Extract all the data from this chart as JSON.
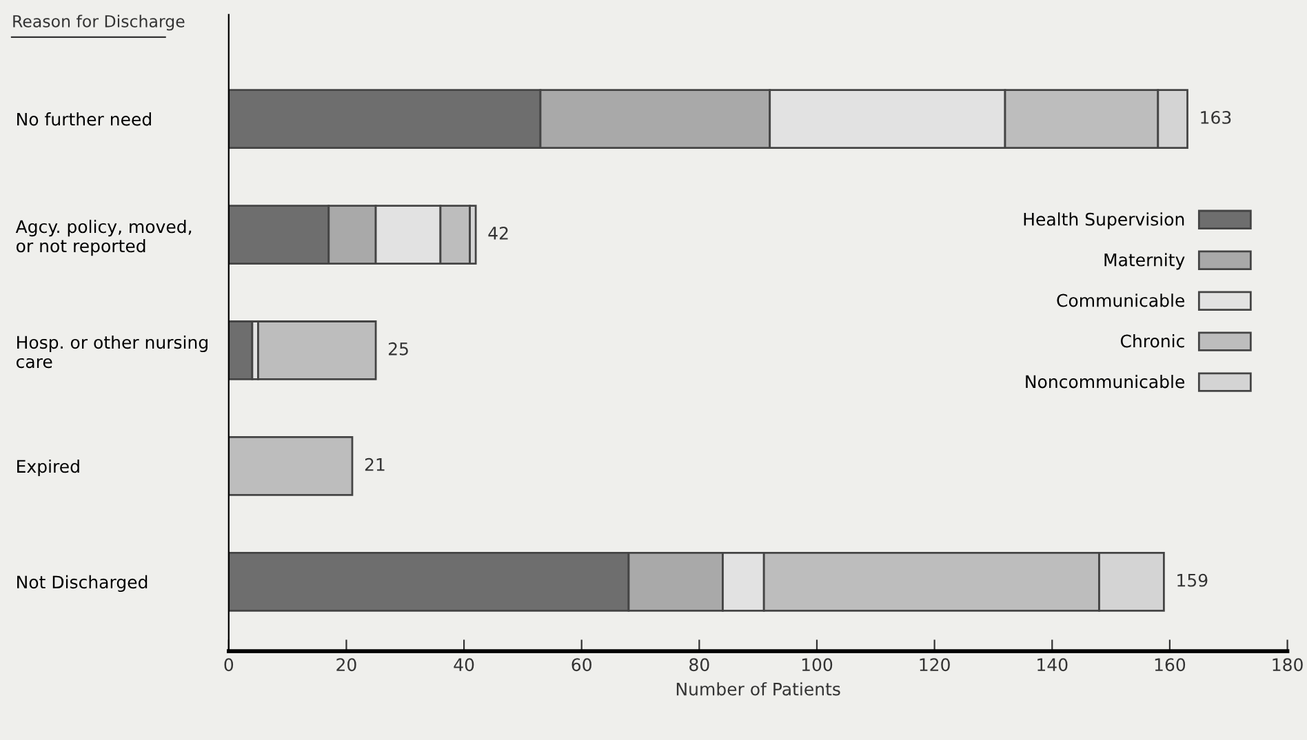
{
  "chart_data": {
    "type": "bar",
    "orientation": "horizontal",
    "stacked": true,
    "ylabel": "Reason for Discharge",
    "xlabel": "Number of Patients",
    "categories": [
      "No further need",
      "Agcy. policy, moved,\nor not reported",
      "Hosp. or other nursing\ncare",
      "Expired",
      "Not Discharged"
    ],
    "series": [
      {
        "name": "Health Supervision",
        "color": "#6e6e6e",
        "values": [
          53,
          17,
          4,
          0,
          68
        ]
      },
      {
        "name": "Maternity",
        "color": "#a9a9a9",
        "values": [
          39,
          8,
          0,
          0,
          16
        ]
      },
      {
        "name": "Communicable",
        "color": "#e2e2e2",
        "values": [
          40,
          11,
          1,
          0,
          7
        ]
      },
      {
        "name": "Chronic",
        "color": "#bdbdbd",
        "values": [
          26,
          5,
          20,
          21,
          57
        ]
      },
      {
        "name": "Noncommunicable",
        "color": "#d4d4d4",
        "values": [
          5,
          1,
          0,
          0,
          11
        ]
      }
    ],
    "totals": [
      "163",
      "42",
      "25",
      "21",
      "159"
    ],
    "xlim": [
      0,
      180
    ],
    "xticks": [
      0,
      20,
      40,
      60,
      80,
      100,
      120,
      140,
      160,
      180
    ],
    "grid": false,
    "legend": "right"
  }
}
